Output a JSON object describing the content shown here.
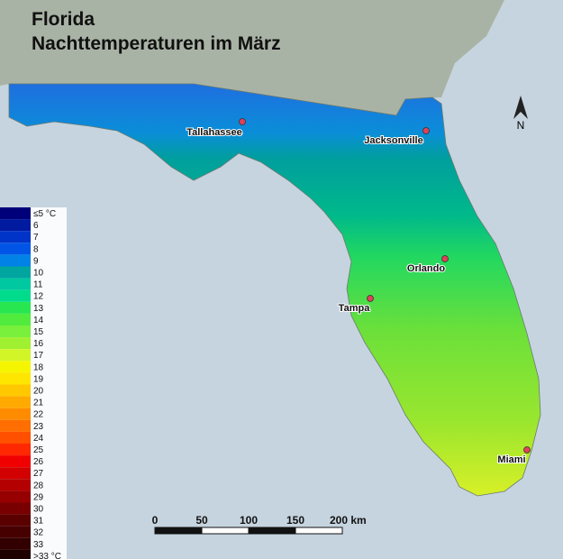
{
  "header": {
    "title": [
      "Florida",
      "Nachttemperaturen im März"
    ]
  },
  "legend": [
    {
      "label": "≤5 °C",
      "color": "#00007a"
    },
    {
      "label": "6",
      "color": "#001aa0"
    },
    {
      "label": "7",
      "color": "#0033c8"
    },
    {
      "label": "8",
      "color": "#0055e6"
    },
    {
      "label": "9",
      "color": "#0082e6"
    },
    {
      "label": "10",
      "color": "#00a5a0"
    },
    {
      "label": "11",
      "color": "#00c8a0"
    },
    {
      "label": "12",
      "color": "#00dc8c"
    },
    {
      "label": "13",
      "color": "#28e650"
    },
    {
      "label": "14",
      "color": "#50eb3c"
    },
    {
      "label": "15",
      "color": "#78f03c"
    },
    {
      "label": "16",
      "color": "#a0f032"
    },
    {
      "label": "17",
      "color": "#d2f528"
    },
    {
      "label": "18",
      "color": "#f5f500"
    },
    {
      "label": "19",
      "color": "#ffe600"
    },
    {
      "label": "20",
      "color": "#ffc800"
    },
    {
      "label": "21",
      "color": "#ffaa00"
    },
    {
      "label": "22",
      "color": "#ff8c00"
    },
    {
      "label": "23",
      "color": "#ff6e00"
    },
    {
      "label": "24",
      "color": "#ff5000"
    },
    {
      "label": "25",
      "color": "#ff2800"
    },
    {
      "label": "26",
      "color": "#f00000"
    },
    {
      "label": "27",
      "color": "#d20000"
    },
    {
      "label": "28",
      "color": "#b40000"
    },
    {
      "label": "29",
      "color": "#960000"
    },
    {
      "label": "30",
      "color": "#780000"
    },
    {
      "label": "31",
      "color": "#5a0000"
    },
    {
      "label": "32",
      "color": "#460000"
    },
    {
      "label": "33",
      "color": "#320000"
    },
    {
      "label": ">33 °C",
      "color": "#1e0000"
    }
  ],
  "cities": [
    {
      "name": "Tallahassee",
      "color": "#e0405a"
    },
    {
      "name": "Jacksonville",
      "color": "#e0405a"
    },
    {
      "name": "Orlando",
      "color": "#e0405a"
    },
    {
      "name": "Tampa",
      "color": "#e0405a"
    },
    {
      "name": "Miami",
      "color": "#e0405a"
    }
  ],
  "scale": [
    "0",
    "50",
    "100",
    "150",
    "200 km"
  ],
  "north": "N"
}
